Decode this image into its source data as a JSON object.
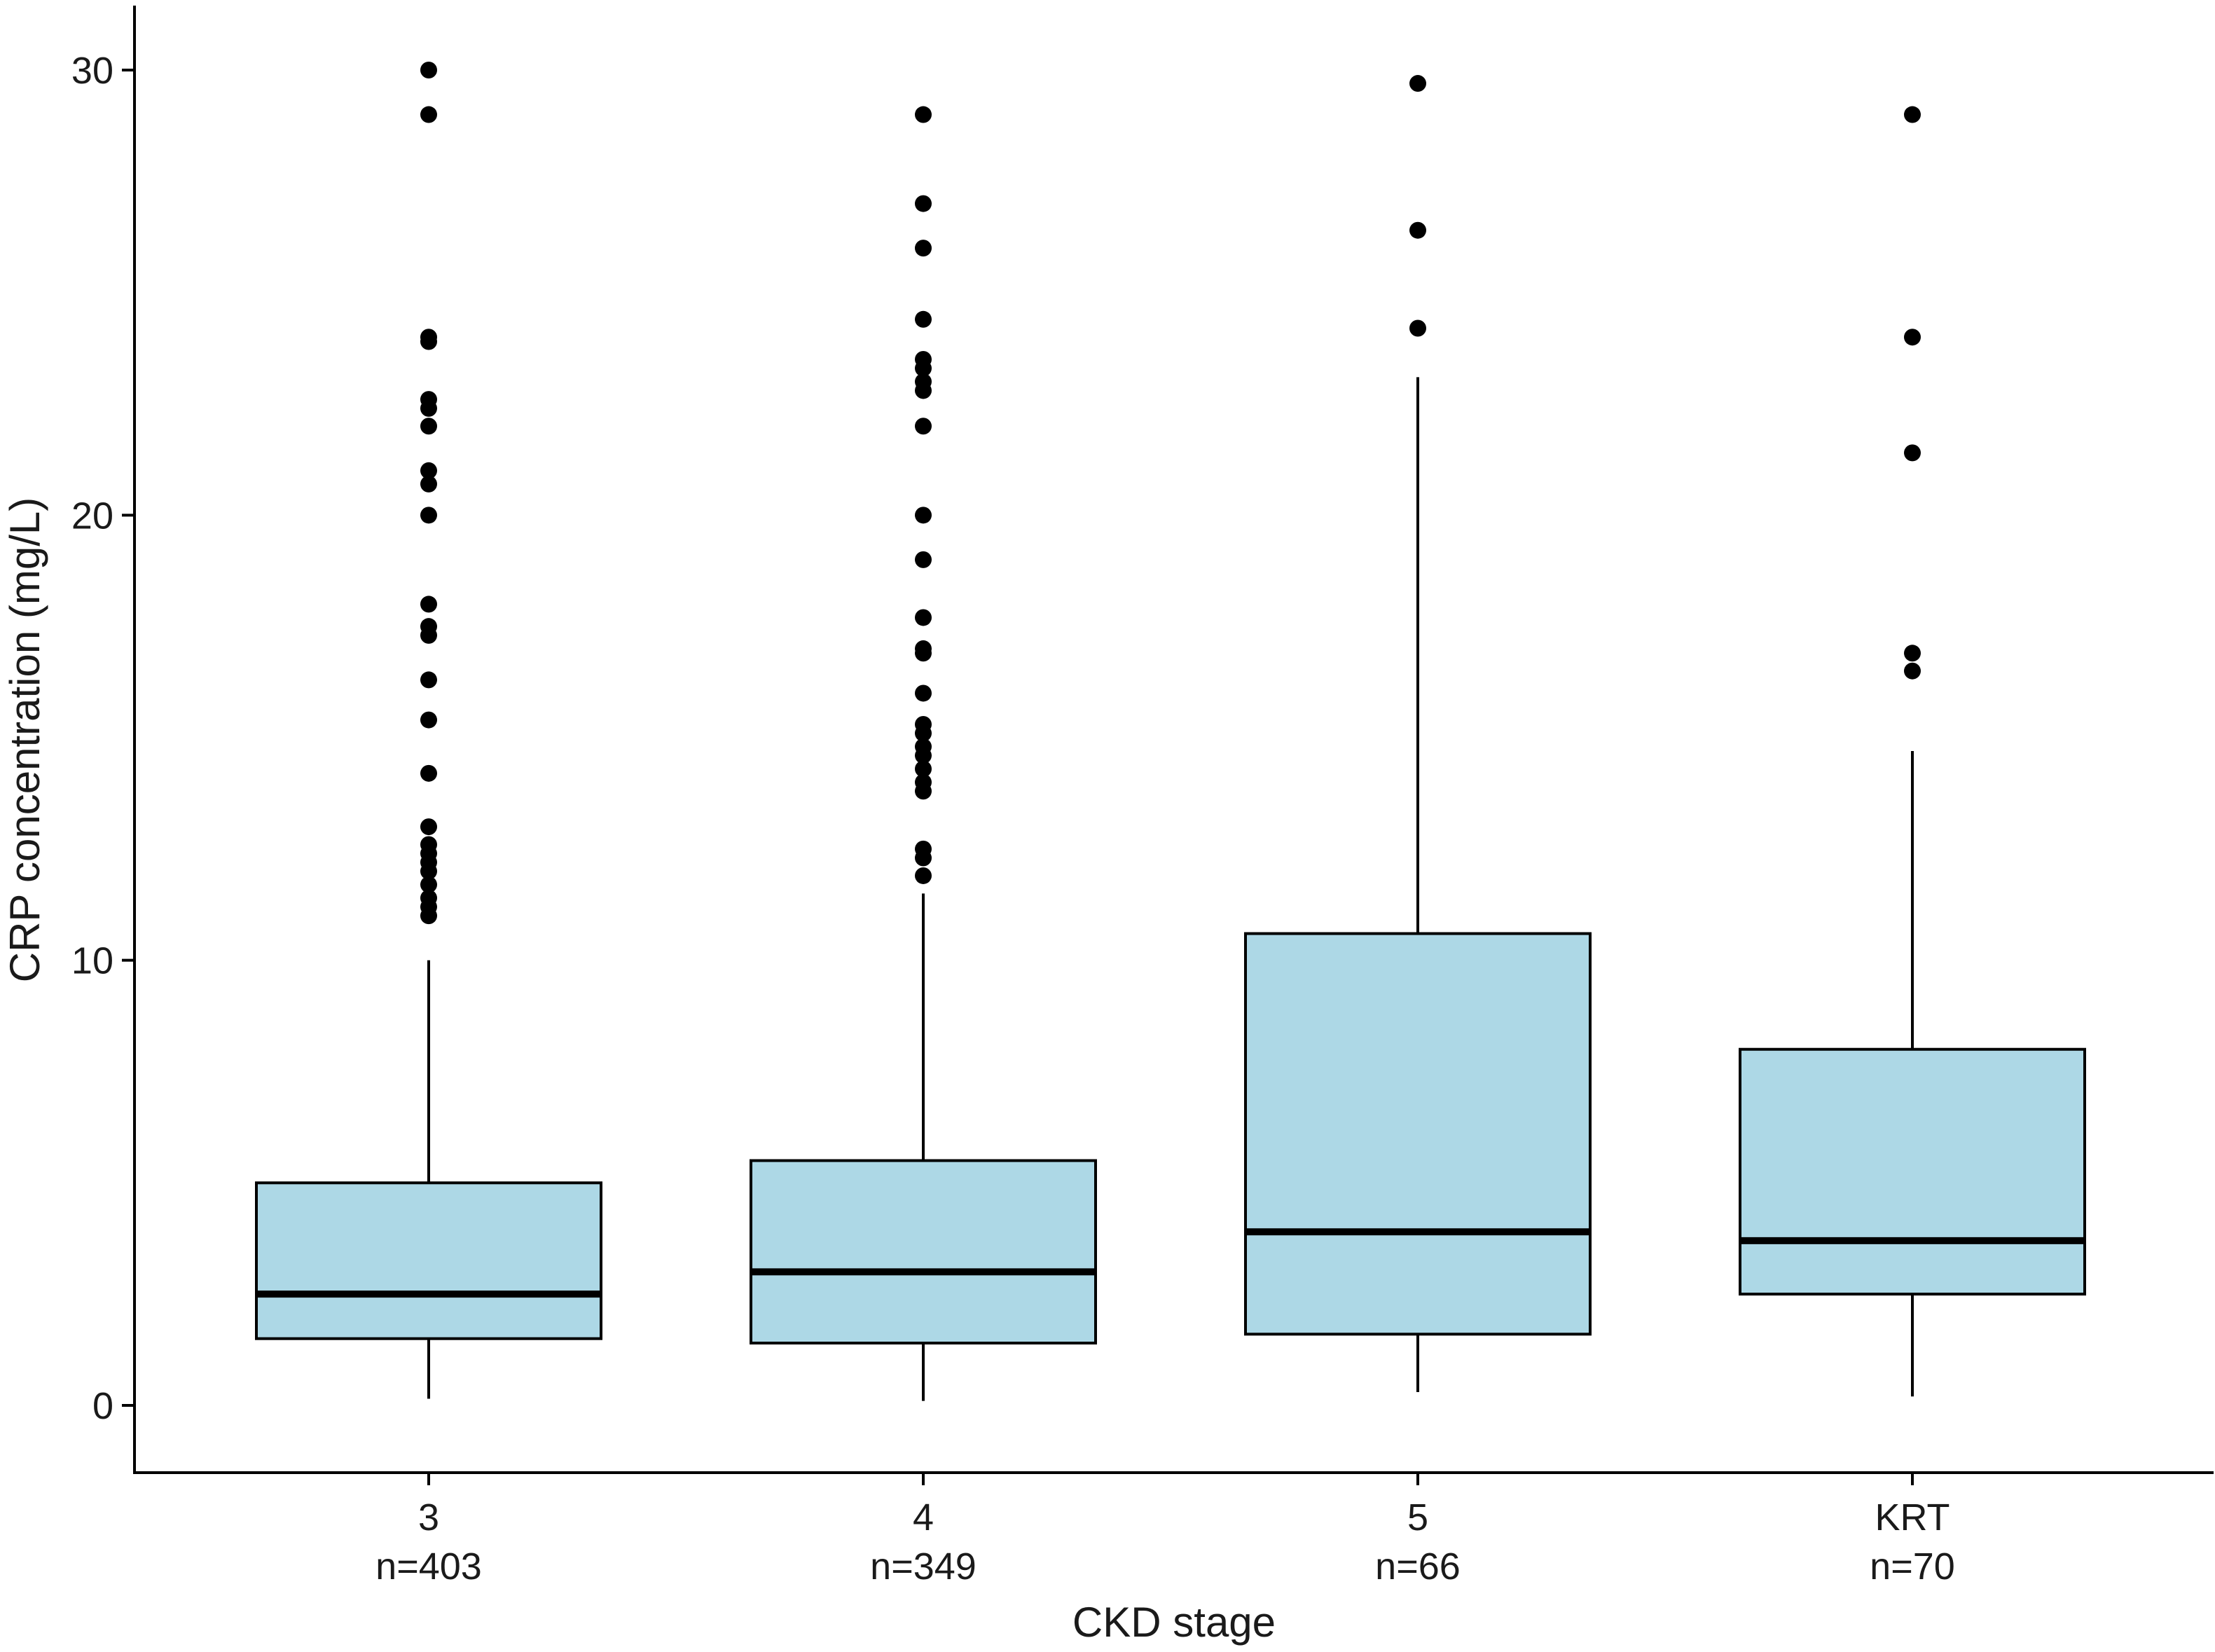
{
  "chart_data": {
    "type": "boxplot",
    "title": "",
    "xlabel": "CKD stage",
    "ylabel": "CRP concentration (mg/L)",
    "ylim": [
      -1.5,
      31.5
    ],
    "yticks": [
      0,
      10,
      20,
      30
    ],
    "ytick_labels": [
      "0",
      "10",
      "20",
      "30"
    ],
    "grid": false,
    "box_fill": "#add8e6",
    "box_stroke": "#000000",
    "groups": [
      {
        "category": "3",
        "n_label": "n=403",
        "whisker_low": 0.15,
        "q1": 1.5,
        "median": 2.5,
        "q3": 5.0,
        "whisker_high": 10.0,
        "outliers": [
          30.0,
          29.0,
          24.0,
          23.9,
          22.6,
          22.4,
          22.0,
          21.0,
          20.7,
          20.0,
          18.0,
          17.5,
          17.3,
          16.3,
          15.4,
          14.2,
          13.0,
          12.6,
          12.4,
          12.2,
          12.0,
          11.7,
          11.4,
          11.2,
          11.0
        ]
      },
      {
        "category": "4",
        "n_label": "n=349",
        "whisker_low": 0.1,
        "q1": 1.4,
        "median": 3.0,
        "q3": 5.5,
        "whisker_high": 11.5,
        "outliers": [
          29.0,
          27.0,
          26.0,
          24.4,
          23.5,
          23.3,
          23.0,
          22.8,
          22.0,
          20.0,
          19.0,
          17.7,
          17.0,
          16.9,
          16.0,
          15.3,
          15.1,
          14.8,
          14.6,
          14.3,
          14.0,
          13.8,
          12.5,
          12.3,
          11.9
        ]
      },
      {
        "category": "5",
        "n_label": "n=66",
        "whisker_low": 0.3,
        "q1": 1.6,
        "median": 3.9,
        "q3": 10.6,
        "whisker_high": 23.1,
        "outliers": [
          29.7,
          26.4,
          24.2
        ]
      },
      {
        "category": "KRT",
        "n_label": "n=70",
        "whisker_low": 0.2,
        "q1": 2.5,
        "median": 3.7,
        "q3": 8.0,
        "whisker_high": 14.7,
        "outliers": [
          29.0,
          24.0,
          21.4,
          16.9,
          16.5
        ]
      }
    ]
  }
}
